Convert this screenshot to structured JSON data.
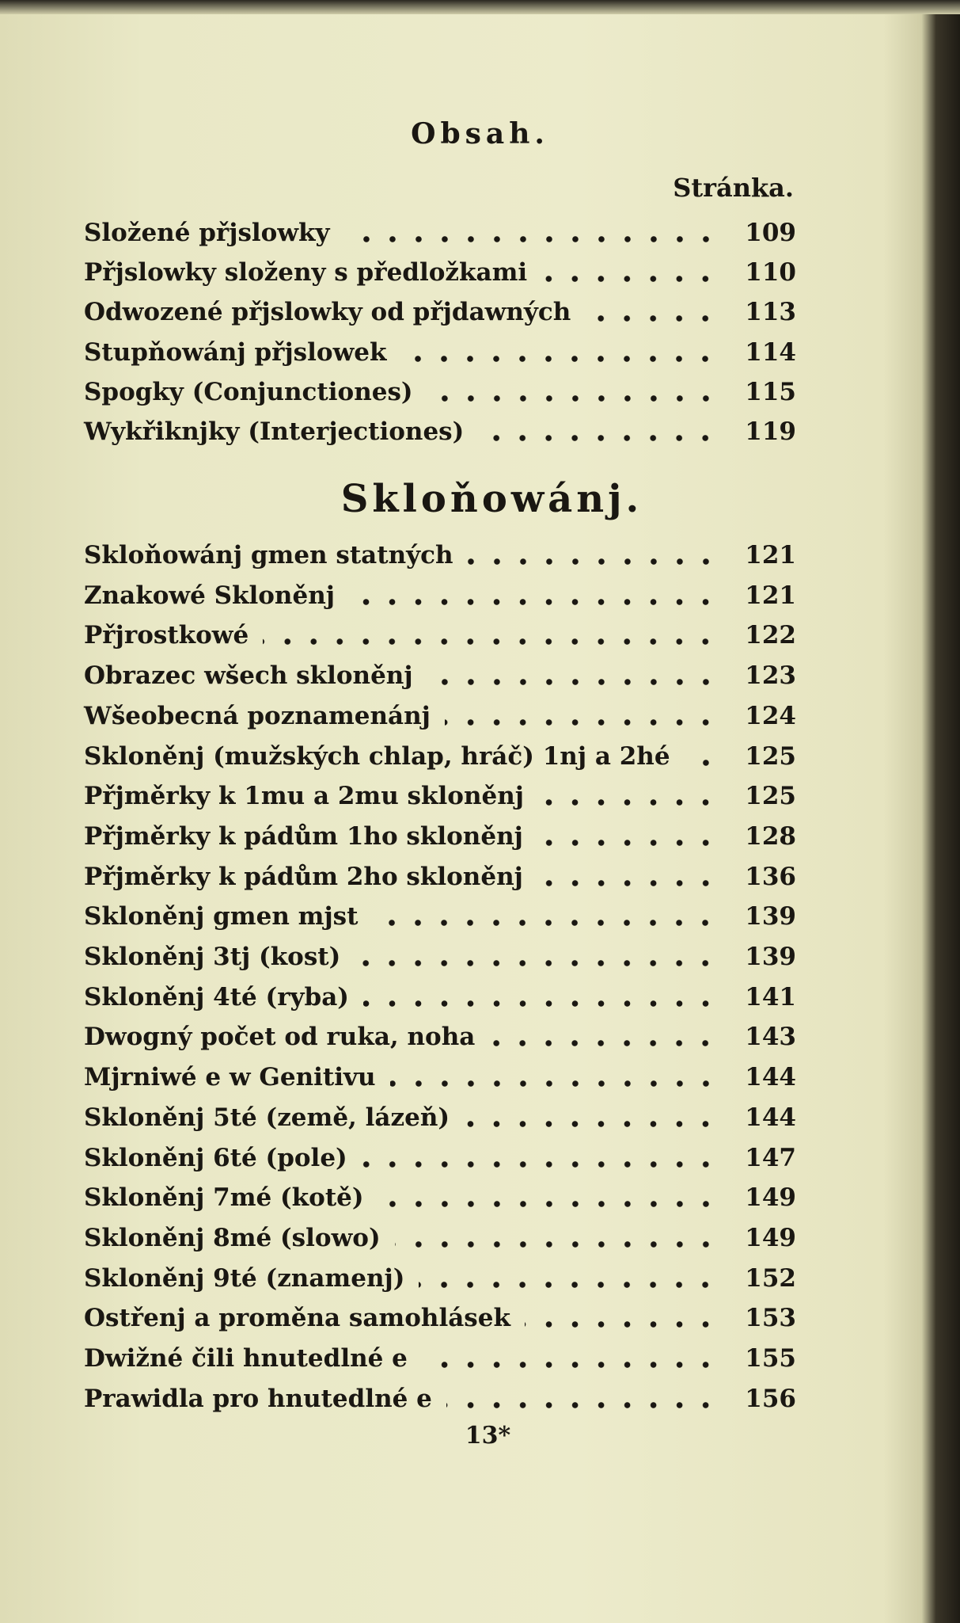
{
  "title": "Obsah.",
  "column_header": "Stránka.",
  "group1": [
    {
      "label": "Složené přjslowky",
      "page": "109"
    },
    {
      "label": "Přjslowky složeny s předložkami",
      "page": "110"
    },
    {
      "label": "Odwozené přjslowky od přjdawných",
      "page": "113"
    },
    {
      "label": "Stupňowánj přjslowek",
      "page": "114"
    },
    {
      "label": "Spogky (Conjunctiones)",
      "page": "115"
    },
    {
      "label": "Wykřiknjky (Interjectiones)",
      "page": "119"
    }
  ],
  "section_heading": "Skloňowánj.",
  "group2": [
    {
      "label": "Skloňowánj gmen statných",
      "page": "121"
    },
    {
      "label": "Znakowé Skloněnj",
      "page": "121"
    },
    {
      "label": "Přjrostkowé",
      "page": "122"
    },
    {
      "label": "Obrazec wšech skloněnj",
      "page": "123"
    },
    {
      "label": "Wšeobecná poznamenánj",
      "page": "124"
    },
    {
      "label": "Skloněnj (mužských chlap, hráč) 1nj a 2hé",
      "page": "125"
    },
    {
      "label": "Přjměrky k 1mu a 2mu skloněnj",
      "page": "125"
    },
    {
      "label": "Přjměrky k pádům 1ho skloněnj",
      "page": "128"
    },
    {
      "label": "Přjměrky k pádům 2ho skloněnj",
      "page": "136"
    },
    {
      "label": "Skloněnj gmen mjst",
      "page": "139"
    },
    {
      "label": "Skloněnj 3tj (kost)",
      "page": "139"
    },
    {
      "label": "Skloněnj 4té (ryba)",
      "page": "141"
    },
    {
      "label": "Dwogný počet od ruka, noha",
      "page": "143"
    },
    {
      "label": "Mjrniwé e w Genitivu",
      "page": "144"
    },
    {
      "label": "Skloněnj 5té (země, lázeň)",
      "page": "144"
    },
    {
      "label": "Skloněnj 6té (pole)",
      "page": "147"
    },
    {
      "label": "Skloněnj 7mé (kotě)",
      "page": "149"
    },
    {
      "label": "Skloněnj 8mé (slowo)",
      "page": "149"
    },
    {
      "label": "Skloněnj 9té (znamenj)",
      "page": "152"
    },
    {
      "label": "Ostřenj a proměna samohlásek",
      "page": "153"
    },
    {
      "label": "Dwižné čili hnutedlné e",
      "page": "155"
    },
    {
      "label": "Prawidla pro hnutedlné e",
      "page": "156"
    }
  ],
  "footer_signature": "13*"
}
